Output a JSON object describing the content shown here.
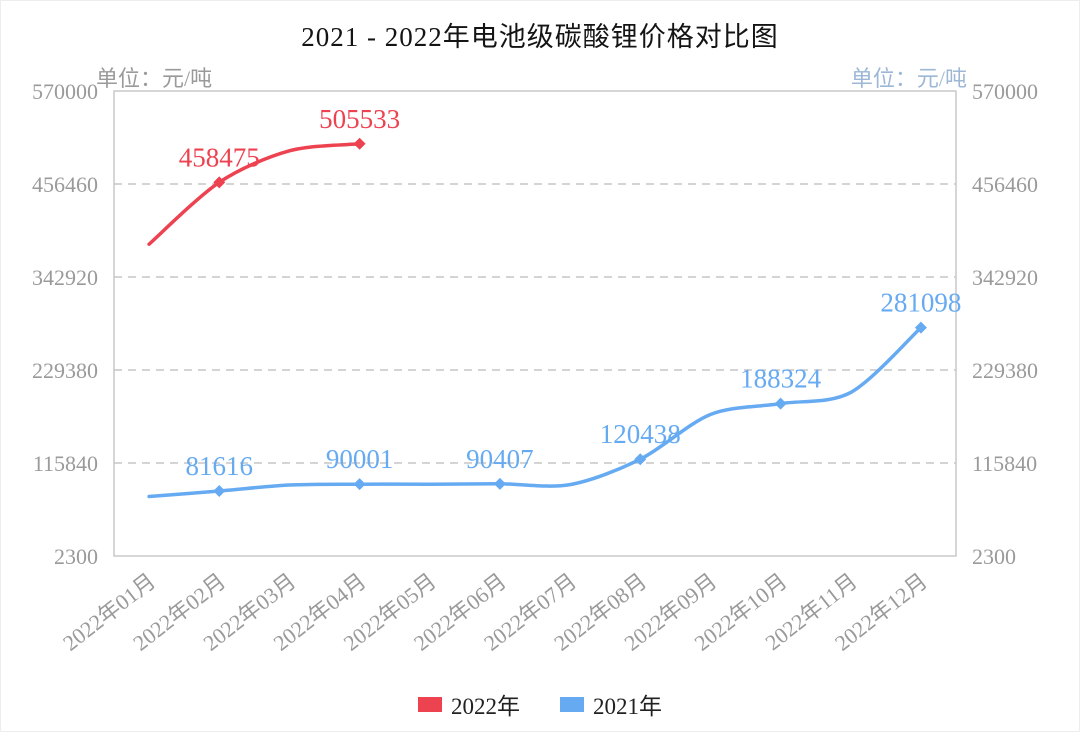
{
  "page": {
    "title": "2021 - 2022年电池级碳酸锂价格对比图"
  },
  "axis": {
    "unit_left": "单位：元/吨",
    "unit_right": "单位：元/吨"
  },
  "colors": {
    "title_text": "#141414",
    "axis_text": "#9a9a9a",
    "grid_line": "#c6c6c6",
    "plot_border": "#c9c9c9",
    "unit_left_text": "#9a9a9a",
    "unit_right_text": "#9db7d6",
    "legend_text": "#222222",
    "series_2022": "#ed4250",
    "series_2021": "#66aaf2"
  },
  "chart_data": {
    "type": "line",
    "title": "2021 - 2022年电池级碳酸锂价格对比图",
    "xlabel": "",
    "ylabel": "元/吨",
    "ylim": [
      2300,
      570000
    ],
    "yticks": [
      2300,
      115840,
      229380,
      342920,
      456460,
      570000
    ],
    "grid": "horizontal-dashed",
    "legend_position": "bottom",
    "categories": [
      "2022年01月",
      "2022年02月",
      "2022年03月",
      "2022年04月",
      "2022年05月",
      "2022年06月",
      "2022年07月",
      "2022年08月",
      "2022年09月",
      "2022年10月",
      "2022年11月",
      "2022年12月"
    ],
    "series": [
      {
        "name": "2022年",
        "color": "#ed4250",
        "values": [
          383000,
          458475,
          497000,
          505533
        ],
        "labels": [
          null,
          "458475",
          null,
          "505533"
        ]
      },
      {
        "name": "2021年",
        "color": "#66aaf2",
        "values": [
          75000,
          81616,
          89000,
          90001,
          90000,
          90407,
          89500,
          120438,
          175000,
          188324,
          202000,
          281098
        ],
        "labels": [
          null,
          "81616",
          null,
          "90001",
          null,
          "90407",
          null,
          "120438",
          null,
          "188324",
          null,
          "281098"
        ]
      }
    ]
  }
}
